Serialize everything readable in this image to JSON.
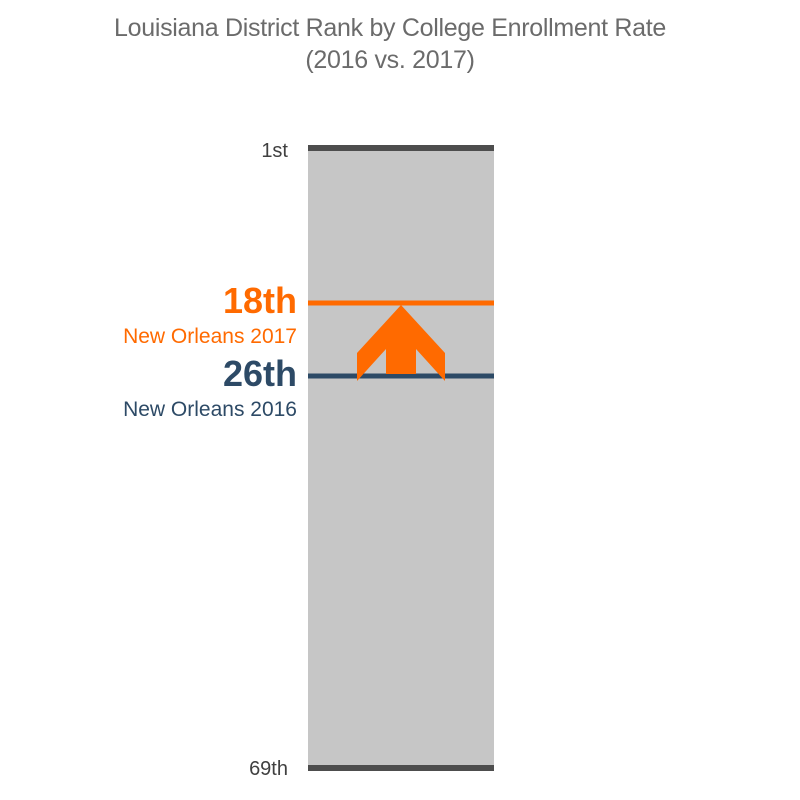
{
  "chart_data": {
    "type": "rank-scale",
    "title": "Louisiana District Rank by College Enrollment Rate",
    "subtitle": "(2016 vs. 2017)",
    "scale": {
      "min_rank": 1,
      "max_rank": 69,
      "top_label": "1st",
      "bottom_label": "69th"
    },
    "markers": [
      {
        "rank": 18,
        "rank_label": "18th",
        "name": "New Orleans 2017",
        "color": "#ff6a00"
      },
      {
        "rank": 26,
        "rank_label": "26th",
        "name": "New Orleans 2016",
        "color": "#2d4a66"
      }
    ],
    "arrow": {
      "direction": "up",
      "color": "#ff6a00"
    },
    "colors": {
      "bar": "#c6c6c6",
      "endpoints": "#4d4d4d"
    }
  }
}
